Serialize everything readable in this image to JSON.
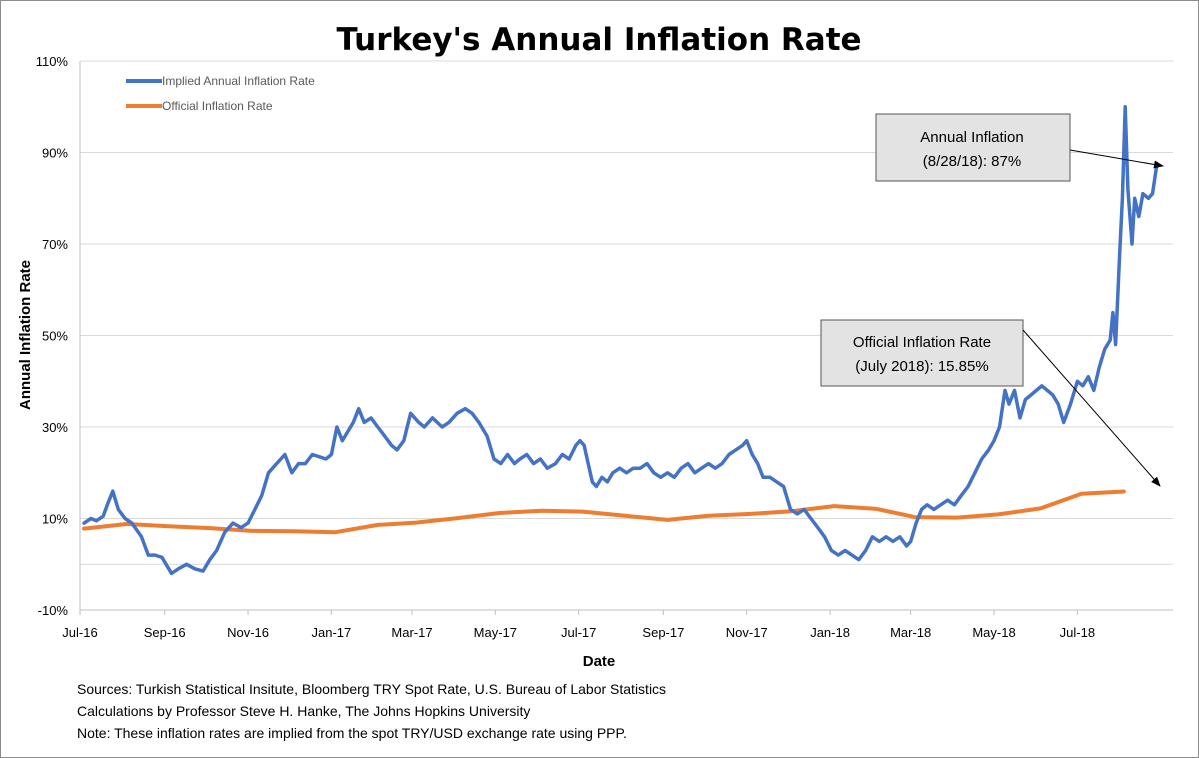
{
  "chart_data": {
    "type": "line",
    "title": "Turkey's Annual Inflation Rate",
    "xlabel": "Date",
    "ylabel": "Annual Inflation Rate",
    "ylim": [
      -10,
      110
    ],
    "yticks": [
      -10,
      10,
      30,
      50,
      70,
      90,
      110
    ],
    "ytick_labels": [
      "-10%",
      "10%",
      "30%",
      "50%",
      "70%",
      "90%",
      "110%"
    ],
    "xlim_days": [
      0,
      800
    ],
    "xtick_days": [
      0,
      62,
      123,
      184,
      243,
      304,
      365,
      427,
      488,
      549,
      608,
      669,
      730
    ],
    "xtick_labels": [
      "Jul-16",
      "Sep-16",
      "Nov-16",
      "Jan-17",
      "Mar-17",
      "May-17",
      "Jul-17",
      "Sep-17",
      "Nov-17",
      "Jan-18",
      "Mar-18",
      "May-18",
      "Jul-18"
    ],
    "x_unit": "days since 2016-07-01",
    "grid": "horizontal",
    "legend_position": "top-left",
    "series": [
      {
        "name": "Implied Annual Inflation Rate",
        "color": "#4472c4",
        "points": [
          [
            3,
            9
          ],
          [
            8,
            10
          ],
          [
            12,
            9.5
          ],
          [
            17,
            10.5
          ],
          [
            20,
            13
          ],
          [
            24,
            16
          ],
          [
            28,
            12
          ],
          [
            33,
            10
          ],
          [
            38,
            9
          ],
          [
            45,
            6
          ],
          [
            50,
            2
          ],
          [
            55,
            2
          ],
          [
            60,
            1.5
          ],
          [
            63,
            0
          ],
          [
            67,
            -2
          ],
          [
            72,
            -1
          ],
          [
            78,
            0
          ],
          [
            84,
            -1
          ],
          [
            90,
            -1.5
          ],
          [
            95,
            1
          ],
          [
            100,
            3
          ],
          [
            106,
            7
          ],
          [
            112,
            9
          ],
          [
            118,
            8
          ],
          [
            123,
            9
          ],
          [
            128,
            12
          ],
          [
            133,
            15
          ],
          [
            138,
            20
          ],
          [
            144,
            22
          ],
          [
            150,
            24
          ],
          [
            155,
            20
          ],
          [
            160,
            22
          ],
          [
            165,
            22
          ],
          [
            170,
            24
          ],
          [
            175,
            23.5
          ],
          [
            180,
            23
          ],
          [
            184,
            24
          ],
          [
            188,
            30
          ],
          [
            192,
            27
          ],
          [
            196,
            29
          ],
          [
            200,
            31
          ],
          [
            204,
            34
          ],
          [
            208,
            31
          ],
          [
            213,
            32
          ],
          [
            218,
            30
          ],
          [
            223,
            28
          ],
          [
            228,
            26
          ],
          [
            232,
            25
          ],
          [
            237,
            27
          ],
          [
            242,
            33
          ],
          [
            248,
            31
          ],
          [
            252,
            30
          ],
          [
            258,
            32
          ],
          [
            265,
            30
          ],
          [
            270,
            31
          ],
          [
            276,
            33
          ],
          [
            282,
            34
          ],
          [
            287,
            33
          ],
          [
            292,
            31
          ],
          [
            298,
            28
          ],
          [
            303,
            23
          ],
          [
            308,
            22
          ],
          [
            313,
            24
          ],
          [
            318,
            22
          ],
          [
            322,
            23
          ],
          [
            327,
            24
          ],
          [
            332,
            22
          ],
          [
            337,
            23
          ],
          [
            342,
            21
          ],
          [
            348,
            22
          ],
          [
            353,
            24
          ],
          [
            358,
            23
          ],
          [
            363,
            26
          ],
          [
            366,
            27
          ],
          [
            369,
            26
          ],
          [
            372,
            22
          ],
          [
            375,
            18
          ],
          [
            378,
            17
          ],
          [
            382,
            19
          ],
          [
            386,
            18
          ],
          [
            390,
            20
          ],
          [
            395,
            21
          ],
          [
            400,
            20
          ],
          [
            405,
            21
          ],
          [
            410,
            21
          ],
          [
            415,
            22
          ],
          [
            420,
            20
          ],
          [
            425,
            19
          ],
          [
            430,
            20
          ],
          [
            435,
            19
          ],
          [
            440,
            21
          ],
          [
            445,
            22
          ],
          [
            450,
            20
          ],
          [
            455,
            21
          ],
          [
            460,
            22
          ],
          [
            465,
            21
          ],
          [
            470,
            22
          ],
          [
            475,
            24
          ],
          [
            480,
            25
          ],
          [
            485,
            26
          ],
          [
            488,
            27
          ],
          [
            492,
            24
          ],
          [
            496,
            22
          ],
          [
            500,
            19
          ],
          [
            505,
            19
          ],
          [
            510,
            18
          ],
          [
            515,
            17
          ],
          [
            520,
            12
          ],
          [
            525,
            11
          ],
          [
            530,
            12
          ],
          [
            535,
            10
          ],
          [
            540,
            8
          ],
          [
            545,
            6
          ],
          [
            550,
            3
          ],
          [
            555,
            2
          ],
          [
            560,
            3
          ],
          [
            565,
            2
          ],
          [
            570,
            1
          ],
          [
            575,
            3
          ],
          [
            580,
            6
          ],
          [
            585,
            5
          ],
          [
            590,
            6
          ],
          [
            595,
            5
          ],
          [
            600,
            6
          ],
          [
            605,
            4
          ],
          [
            608,
            5
          ],
          [
            612,
            9
          ],
          [
            616,
            12
          ],
          [
            620,
            13
          ],
          [
            625,
            12
          ],
          [
            630,
            13
          ],
          [
            635,
            14
          ],
          [
            640,
            13
          ],
          [
            645,
            15
          ],
          [
            650,
            17
          ],
          [
            655,
            20
          ],
          [
            660,
            23
          ],
          [
            665,
            25
          ],
          [
            669,
            27
          ],
          [
            673,
            30
          ],
          [
            677,
            38
          ],
          [
            680,
            35
          ],
          [
            684,
            38
          ],
          [
            688,
            32
          ],
          [
            692,
            36
          ],
          [
            696,
            37
          ],
          [
            700,
            38
          ],
          [
            704,
            39
          ],
          [
            708,
            38
          ],
          [
            712,
            37
          ],
          [
            716,
            35
          ],
          [
            720,
            31
          ],
          [
            725,
            35
          ],
          [
            730,
            40
          ],
          [
            734,
            39
          ],
          [
            738,
            41
          ],
          [
            742,
            38
          ],
          [
            746,
            43
          ],
          [
            750,
            47
          ],
          [
            754,
            49
          ],
          [
            756,
            55
          ],
          [
            758,
            48
          ],
          [
            761,
            68
          ],
          [
            763,
            80
          ],
          [
            765,
            100
          ],
          [
            767,
            82
          ],
          [
            770,
            70
          ],
          [
            772,
            80
          ],
          [
            775,
            76
          ],
          [
            778,
            81
          ],
          [
            782,
            80
          ],
          [
            785,
            81
          ],
          [
            788,
            87
          ]
        ]
      },
      {
        "name": "Official Inflation Rate",
        "color": "#ed7d31",
        "points": [
          [
            3,
            7.8
          ],
          [
            34,
            8.8
          ],
          [
            65,
            8.3
          ],
          [
            95,
            7.9
          ],
          [
            126,
            7.3
          ],
          [
            156,
            7.2
          ],
          [
            187,
            7.0
          ],
          [
            218,
            8.6
          ],
          [
            246,
            9.1
          ],
          [
            277,
            10.1
          ],
          [
            307,
            11.2
          ],
          [
            338,
            11.7
          ],
          [
            368,
            11.5
          ],
          [
            399,
            10.6
          ],
          [
            430,
            9.7
          ],
          [
            460,
            10.6
          ],
          [
            491,
            11.0
          ],
          [
            521,
            11.6
          ],
          [
            552,
            12.7
          ],
          [
            583,
            12.1
          ],
          [
            611,
            10.3
          ],
          [
            642,
            10.2
          ],
          [
            672,
            10.9
          ],
          [
            703,
            12.2
          ],
          [
            733,
            15.4
          ],
          [
            764,
            15.9
          ]
        ]
      }
    ],
    "annotations": [
      {
        "line1": "Annual Inflation",
        "line2": "(8/28/18): 87%"
      },
      {
        "line1": "Official Inflation Rate",
        "line2": "(July 2018): 15.85%"
      }
    ]
  },
  "notes": [
    "Sources: Turkish Statistical Insitute, Bloomberg TRY Spot Rate, U.S. Bureau of Labor Statistics",
    "Calculations by Professor Steve H. Hanke, The Johns Hopkins University",
    "Note: These inflation rates are implied from the spot TRY/USD exchange rate using PPP."
  ]
}
